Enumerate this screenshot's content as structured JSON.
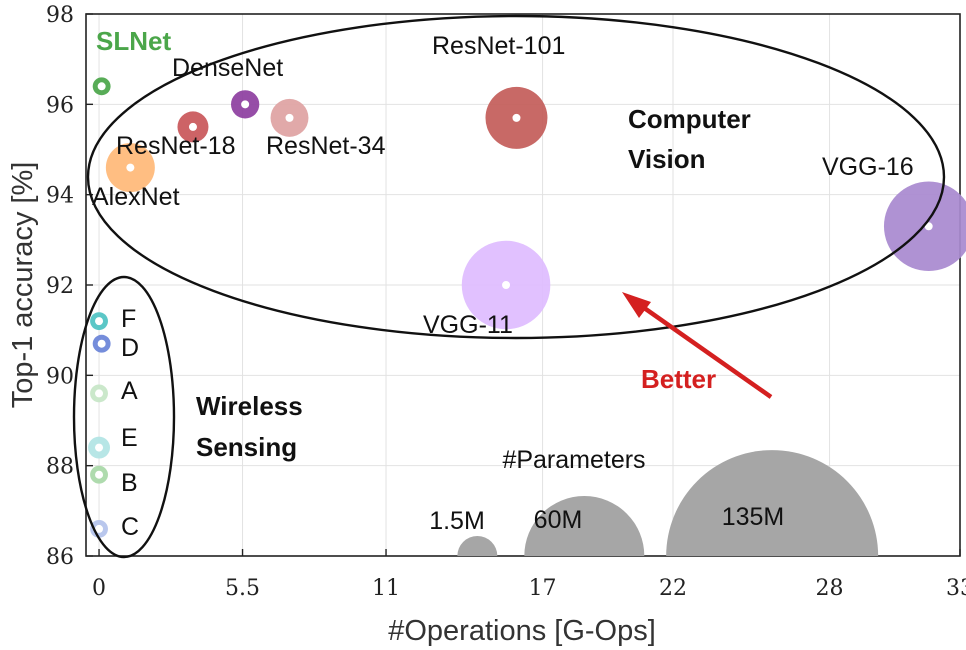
{
  "chart_data": {
    "type": "scatter",
    "xlabel": "#Operations [G-Ops]",
    "ylabel": "Top-1 accuracy [%]",
    "xlim": [
      -0.5,
      33
    ],
    "ylim": [
      86,
      98
    ],
    "xticks": [
      {
        "value": 0,
        "label": "0"
      },
      {
        "value": 5.5,
        "label": "5.5"
      },
      {
        "value": 11,
        "label": "11"
      },
      {
        "value": 17,
        "label": "17"
      },
      {
        "value": 22,
        "label": "22"
      },
      {
        "value": 28,
        "label": "28"
      },
      {
        "value": 33,
        "label": "33"
      }
    ],
    "yticks": [
      86,
      88,
      90,
      92,
      94,
      96,
      98
    ],
    "grid": true,
    "points": [
      {
        "name": "AlexNet",
        "x": 1.2,
        "y": 94.6,
        "size": 1.5,
        "color": "#ffb978",
        "label": "AlexNet"
      },
      {
        "name": "ResNet-18",
        "x": 3.6,
        "y": 95.5,
        "size": 0.6,
        "color": "#c9575a",
        "label": "ResNet-18"
      },
      {
        "name": "DenseNet",
        "x": 5.6,
        "y": 96.0,
        "size": 0.5,
        "color": "#8e3fa0",
        "label": "DenseNet"
      },
      {
        "name": "ResNet-34",
        "x": 7.3,
        "y": 95.7,
        "size": 0.9,
        "color": "#dfa2a2",
        "label": "ResNet-34"
      },
      {
        "name": "ResNet-101",
        "x": 16.0,
        "y": 95.7,
        "size": 2.4,
        "color": "#c45e5a",
        "label": "ResNet-101"
      },
      {
        "name": "VGG-11",
        "x": 15.6,
        "y": 92.0,
        "size": 4.9,
        "color": "#dfbcff",
        "label": "VGG-11"
      },
      {
        "name": "VGG-16",
        "x": 31.8,
        "y": 93.3,
        "size": 5.0,
        "color": "#a98ad0",
        "label": "VGG-16"
      },
      {
        "name": "SLNet",
        "x": 0.1,
        "y": 96.4,
        "size": 0.2,
        "color": "#4ba64a",
        "label": "SLNet"
      },
      {
        "name": "F",
        "x": 0.0,
        "y": 91.2,
        "size": 0.2,
        "color": "#4fc3c3",
        "label": "F"
      },
      {
        "name": "D",
        "x": 0.1,
        "y": 90.7,
        "size": 0.2,
        "color": "#6b84d8",
        "label": "D"
      },
      {
        "name": "A",
        "x": 0.0,
        "y": 89.6,
        "size": 0.2,
        "color": "#c7e6c7",
        "label": "A"
      },
      {
        "name": "E",
        "x": 0.0,
        "y": 88.4,
        "size": 0.3,
        "color": "#b1e4e4",
        "label": "E"
      },
      {
        "name": "B",
        "x": 0.0,
        "y": 87.8,
        "size": 0.2,
        "color": "#a9d8a8",
        "label": "B"
      },
      {
        "name": "C",
        "x": 0.0,
        "y": 86.6,
        "size": 0.2,
        "color": "#b4c3ec",
        "label": "C"
      }
    ],
    "size_legend": {
      "title": "#Parameters",
      "items": [
        {
          "label": "1.5M",
          "x": 14.5
        },
        {
          "label": "60M",
          "x": 18.6
        },
        {
          "label": "135M",
          "x": 25.8
        }
      ],
      "color": "#a6a6a6"
    },
    "annotations": {
      "computer_vision": "Computer Vision",
      "computer_vision_line1": "Computer",
      "computer_vision_line2": "Vision",
      "wireless_line1": "Wireless",
      "wireless_line2": "Sensing",
      "better": "Better",
      "better_color": "#d42020",
      "slnet_color": "#4ba64a"
    }
  }
}
